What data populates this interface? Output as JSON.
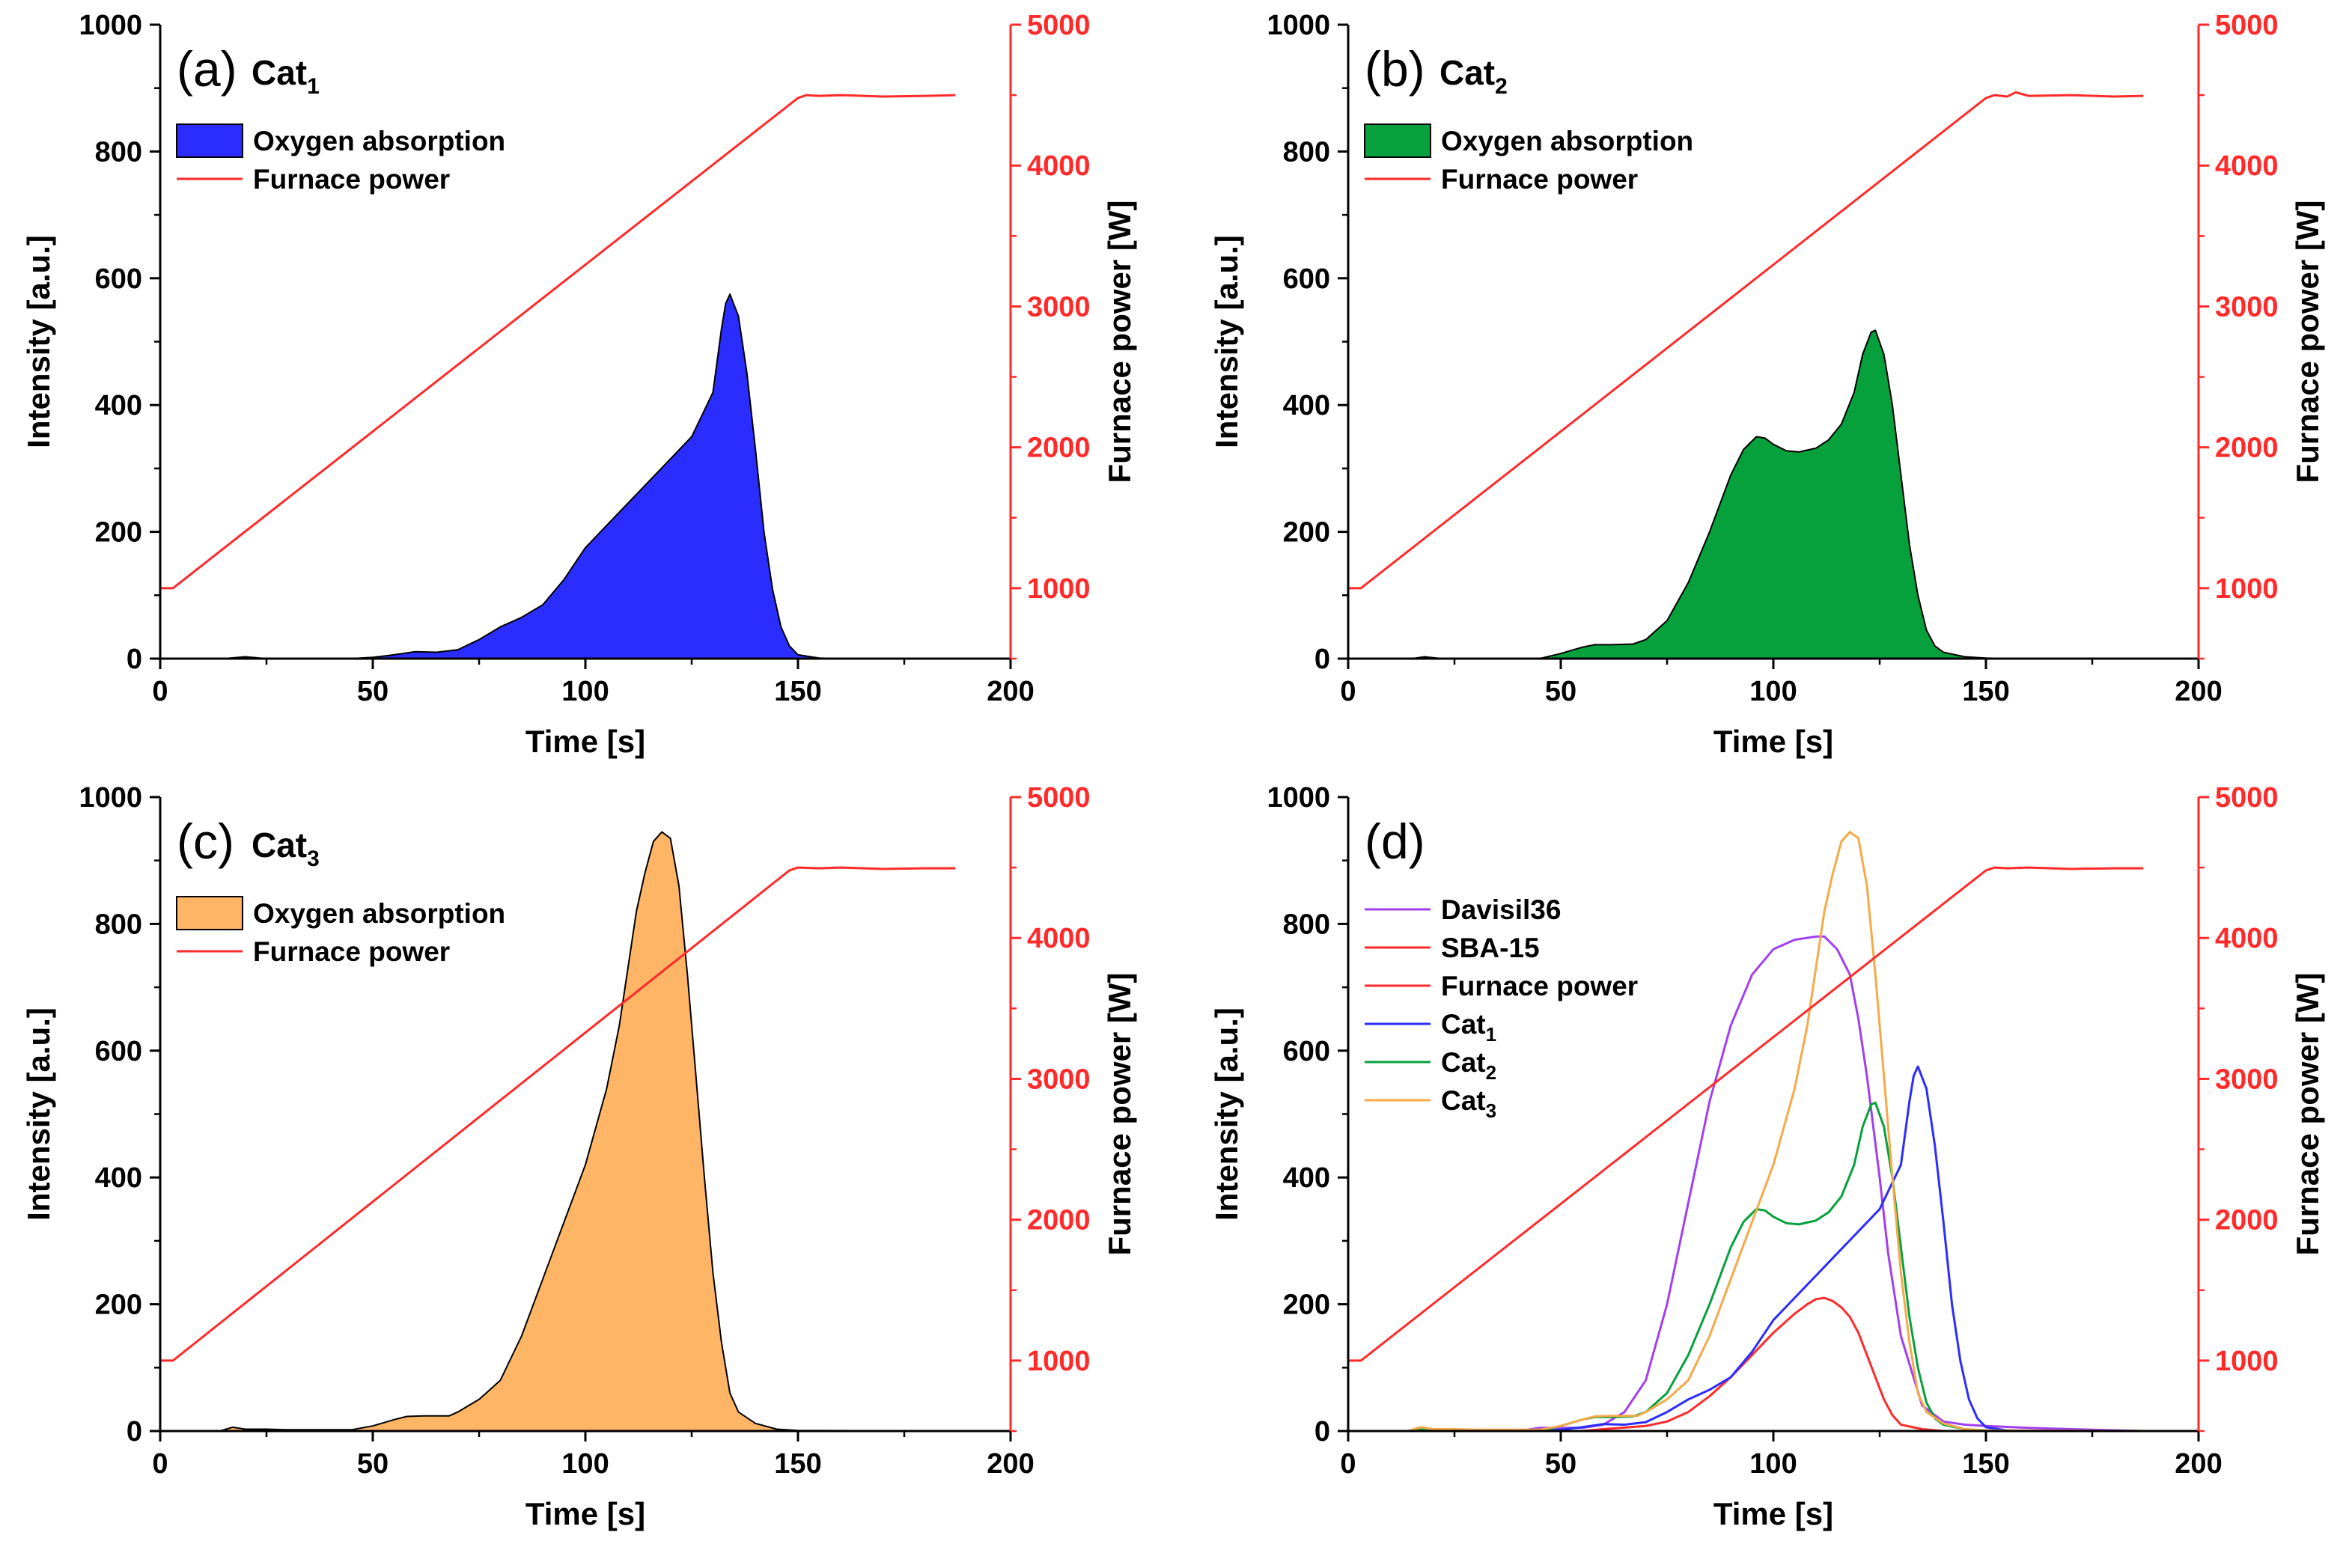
{
  "colors": {
    "furnace": "#ff2a2a",
    "cat1": "#2b2dff",
    "cat2": "#06a13c",
    "cat3": "#ffb566",
    "cat3_line": "#f5a948",
    "davisil": "#a23ff0",
    "sba15": "#ff2a2a",
    "axis": "#000000"
  },
  "chart_data": [
    {
      "id": "a",
      "type": "area",
      "label": "(a)",
      "cat_label": "Cat",
      "cat_sub": "1",
      "xlabel": "Time [s]",
      "ylabel": "Intensity [a.u.]",
      "y2label": "Furnace power [W]",
      "xlim": [
        0,
        200
      ],
      "ylim": [
        0,
        1000
      ],
      "y2lim": [
        500,
        5000
      ],
      "xticks": [
        "0",
        "50",
        "100",
        "150",
        "200"
      ],
      "yticks": [
        "0",
        "200",
        "400",
        "600",
        "800",
        "1000"
      ],
      "y2ticks": [
        "1000",
        "2000",
        "3000",
        "4000",
        "5000"
      ],
      "legend": [
        {
          "label": "Oxygen absorption",
          "kind": "patch",
          "color_key": "cat1"
        },
        {
          "label": "Furnace power",
          "kind": "line",
          "color_key": "furnace"
        }
      ],
      "series": [
        {
          "name": "Oxygen absorption",
          "axis": "left",
          "style": "area",
          "color_key": "cat1",
          "x": [
            0,
            15,
            20,
            25,
            45,
            50,
            55,
            60,
            65,
            70,
            75,
            80,
            85,
            90,
            95,
            100,
            105,
            110,
            115,
            120,
            125,
            130,
            132,
            133,
            134,
            136,
            138,
            140,
            142,
            144,
            146,
            148,
            150,
            155,
            160,
            187
          ],
          "y": [
            0,
            0,
            3,
            0,
            0,
            2,
            6,
            11,
            10,
            14,
            30,
            50,
            65,
            85,
            125,
            175,
            210,
            245,
            280,
            315,
            350,
            420,
            520,
            560,
            575,
            540,
            450,
            330,
            200,
            110,
            50,
            20,
            6,
            1,
            0,
            0
          ]
        },
        {
          "name": "Furnace power",
          "axis": "right",
          "style": "line",
          "color_key": "furnace",
          "x": [
            0,
            3,
            150,
            152,
            155,
            160,
            170,
            180,
            187
          ],
          "y": [
            1000,
            1000,
            4480,
            4500,
            4495,
            4500,
            4490,
            4495,
            4500
          ]
        }
      ]
    },
    {
      "id": "b",
      "type": "area",
      "label": "(b)",
      "cat_label": "Cat",
      "cat_sub": "2",
      "xlabel": "Time [s]",
      "ylabel": "Intensity [a.u.]",
      "y2label": "Furnace power [W]",
      "xlim": [
        0,
        200
      ],
      "ylim": [
        0,
        1000
      ],
      "y2lim": [
        500,
        5000
      ],
      "xticks": [
        "0",
        "50",
        "100",
        "150",
        "200"
      ],
      "yticks": [
        "0",
        "200",
        "400",
        "600",
        "800",
        "1000"
      ],
      "y2ticks": [
        "1000",
        "2000",
        "3000",
        "4000",
        "5000"
      ],
      "legend": [
        {
          "label": "Oxygen absorption",
          "kind": "patch",
          "color_key": "cat2"
        },
        {
          "label": "Furnace power",
          "kind": "line",
          "color_key": "furnace"
        }
      ],
      "series": [
        {
          "name": "Oxygen absorption",
          "axis": "left",
          "style": "area",
          "color_key": "cat2",
          "x": [
            0,
            15,
            18,
            22,
            45,
            50,
            55,
            58,
            62,
            67,
            70,
            75,
            80,
            85,
            90,
            93,
            96,
            98,
            100,
            103,
            106,
            110,
            113,
            116,
            119,
            121,
            123,
            124,
            126,
            128,
            130,
            132,
            134,
            136,
            138,
            140,
            145,
            150,
            155,
            187
          ],
          "y": [
            0,
            0,
            3,
            0,
            0,
            8,
            18,
            22,
            22,
            23,
            30,
            60,
            120,
            200,
            290,
            330,
            350,
            348,
            338,
            328,
            326,
            332,
            345,
            370,
            420,
            480,
            515,
            518,
            480,
            400,
            290,
            180,
            100,
            45,
            20,
            10,
            3,
            1,
            0,
            0
          ]
        },
        {
          "name": "Furnace power",
          "axis": "right",
          "style": "line",
          "color_key": "furnace",
          "x": [
            0,
            3,
            150,
            152,
            155,
            157,
            160,
            170,
            180,
            187
          ],
          "y": [
            1000,
            1000,
            4480,
            4500,
            4490,
            4520,
            4495,
            4500,
            4490,
            4495
          ]
        }
      ]
    },
    {
      "id": "c",
      "type": "area",
      "label": "(c)",
      "cat_label": "Cat",
      "cat_sub": "3",
      "xlabel": "Time [s]",
      "ylabel": "Intensity [a.u.]",
      "y2label": "Furnace power [W]",
      "xlim": [
        0,
        200
      ],
      "ylim": [
        0,
        1000
      ],
      "y2lim": [
        500,
        5000
      ],
      "xticks": [
        "0",
        "50",
        "100",
        "150",
        "200"
      ],
      "yticks": [
        "0",
        "200",
        "400",
        "600",
        "800",
        "1000"
      ],
      "y2ticks": [
        "1000",
        "2000",
        "3000",
        "4000",
        "5000"
      ],
      "legend": [
        {
          "label": "Oxygen absorption",
          "kind": "patch",
          "color_key": "cat3"
        },
        {
          "label": "Furnace power",
          "kind": "line",
          "color_key": "furnace"
        }
      ],
      "series": [
        {
          "name": "Oxygen absorption",
          "axis": "left",
          "style": "area",
          "color_key": "cat3",
          "x": [
            0,
            14,
            17,
            20,
            25,
            30,
            45,
            50,
            55,
            58,
            62,
            65,
            68,
            70,
            75,
            80,
            85,
            90,
            95,
            100,
            105,
            108,
            110,
            112,
            114,
            116,
            118,
            120,
            122,
            124,
            126,
            128,
            130,
            132,
            134,
            136,
            140,
            145,
            150,
            187
          ],
          "y": [
            0,
            0,
            6,
            3,
            3,
            2,
            2,
            8,
            18,
            23,
            24,
            24,
            24,
            30,
            50,
            80,
            150,
            240,
            330,
            420,
            540,
            640,
            730,
            820,
            880,
            930,
            945,
            935,
            860,
            720,
            560,
            400,
            250,
            140,
            60,
            30,
            12,
            3,
            1,
            0
          ]
        },
        {
          "name": "Furnace power",
          "axis": "right",
          "style": "line",
          "color_key": "furnace",
          "x": [
            0,
            3,
            148,
            150,
            155,
            160,
            170,
            180,
            187
          ],
          "y": [
            1000,
            1000,
            4480,
            4500,
            4495,
            4500,
            4490,
            4495,
            4495
          ]
        }
      ]
    },
    {
      "id": "d",
      "type": "line",
      "label": "(d)",
      "xlabel": "Time [s]",
      "ylabel": "Intensity [a.u.]",
      "y2label": "Furnace power [W]",
      "xlim": [
        0,
        200
      ],
      "ylim": [
        0,
        1000
      ],
      "y2lim": [
        500,
        5000
      ],
      "xticks": [
        "0",
        "50",
        "100",
        "150",
        "200"
      ],
      "yticks": [
        "0",
        "200",
        "400",
        "600",
        "800",
        "1000"
      ],
      "y2ticks": [
        "1000",
        "2000",
        "3000",
        "4000",
        "5000"
      ],
      "legend": [
        {
          "label": "Davisil36",
          "kind": "line",
          "color_key": "davisil"
        },
        {
          "label": "SBA-15",
          "kind": "line",
          "color_key": "sba15"
        },
        {
          "label": "Furnace power",
          "kind": "line",
          "color_key": "furnace"
        },
        {
          "label": "Cat",
          "sub": "1",
          "kind": "line",
          "color_key": "cat1"
        },
        {
          "label": "Cat",
          "sub": "2",
          "kind": "line",
          "color_key": "cat2"
        },
        {
          "label": "Cat",
          "sub": "3",
          "kind": "line",
          "color_key": "cat3_line"
        }
      ],
      "series": [
        {
          "name": "Davisil36",
          "axis": "left",
          "style": "line",
          "color_key": "davisil",
          "x": [
            0,
            40,
            45,
            55,
            60,
            65,
            70,
            75,
            80,
            85,
            90,
            95,
            100,
            105,
            110,
            112,
            115,
            118,
            120,
            122,
            125,
            127,
            130,
            135,
            140,
            145,
            150,
            160,
            170,
            187
          ],
          "y": [
            0,
            0,
            5,
            5,
            10,
            30,
            80,
            200,
            360,
            520,
            640,
            720,
            760,
            775,
            780,
            780,
            760,
            720,
            650,
            560,
            400,
            280,
            150,
            40,
            15,
            10,
            8,
            5,
            3,
            0
          ]
        },
        {
          "name": "SBA-15",
          "axis": "left",
          "style": "line",
          "color_key": "sba15",
          "x": [
            0,
            55,
            60,
            70,
            75,
            80,
            85,
            90,
            95,
            100,
            105,
            108,
            110,
            112,
            114,
            116,
            118,
            120,
            122,
            124,
            126,
            128,
            130,
            135,
            140,
            187
          ],
          "y": [
            0,
            0,
            3,
            8,
            15,
            30,
            55,
            85,
            120,
            155,
            185,
            200,
            208,
            210,
            205,
            195,
            180,
            155,
            120,
            85,
            50,
            25,
            10,
            3,
            0,
            0
          ]
        },
        {
          "name": "Cat1",
          "axis": "left",
          "style": "line",
          "color_key": "cat1",
          "x": [
            0,
            15,
            20,
            25,
            45,
            50,
            55,
            60,
            65,
            70,
            75,
            80,
            85,
            90,
            95,
            100,
            105,
            110,
            115,
            120,
            125,
            130,
            132,
            133,
            134,
            136,
            138,
            140,
            142,
            144,
            146,
            148,
            150,
            155,
            160,
            187
          ],
          "y": [
            0,
            0,
            3,
            0,
            0,
            2,
            6,
            11,
            10,
            14,
            30,
            50,
            65,
            85,
            125,
            175,
            210,
            245,
            280,
            315,
            350,
            420,
            520,
            560,
            575,
            540,
            450,
            330,
            200,
            110,
            50,
            20,
            6,
            1,
            0,
            0
          ]
        },
        {
          "name": "Cat2",
          "axis": "left",
          "style": "line",
          "color_key": "cat2",
          "x": [
            0,
            15,
            18,
            22,
            45,
            50,
            55,
            58,
            62,
            67,
            70,
            75,
            80,
            85,
            90,
            93,
            96,
            98,
            100,
            103,
            106,
            110,
            113,
            116,
            119,
            121,
            123,
            124,
            126,
            128,
            130,
            132,
            134,
            136,
            138,
            140,
            145,
            150,
            155,
            187
          ],
          "y": [
            0,
            0,
            3,
            0,
            0,
            8,
            18,
            22,
            22,
            23,
            30,
            60,
            120,
            200,
            290,
            330,
            350,
            348,
            338,
            328,
            326,
            332,
            345,
            370,
            420,
            480,
            515,
            518,
            480,
            400,
            290,
            180,
            100,
            45,
            20,
            10,
            3,
            1,
            0,
            0
          ]
        },
        {
          "name": "Cat3",
          "axis": "left",
          "style": "line",
          "color_key": "cat3_line",
          "x": [
            0,
            14,
            17,
            20,
            25,
            30,
            45,
            50,
            55,
            58,
            62,
            65,
            68,
            70,
            75,
            80,
            85,
            90,
            95,
            100,
            105,
            108,
            110,
            112,
            114,
            116,
            118,
            120,
            122,
            124,
            126,
            128,
            130,
            132,
            134,
            136,
            140,
            145,
            150,
            187
          ],
          "y": [
            0,
            0,
            6,
            3,
            3,
            2,
            2,
            8,
            18,
            23,
            24,
            24,
            24,
            30,
            50,
            80,
            150,
            240,
            330,
            420,
            540,
            640,
            730,
            820,
            880,
            930,
            945,
            935,
            860,
            720,
            560,
            400,
            250,
            140,
            60,
            30,
            12,
            3,
            1,
            0
          ]
        },
        {
          "name": "Furnace power",
          "axis": "right",
          "style": "line",
          "color_key": "furnace",
          "x": [
            0,
            3,
            150,
            152,
            155,
            160,
            170,
            180,
            187
          ],
          "y": [
            1000,
            1000,
            4480,
            4500,
            4495,
            4500,
            4490,
            4495,
            4495
          ]
        }
      ]
    }
  ]
}
